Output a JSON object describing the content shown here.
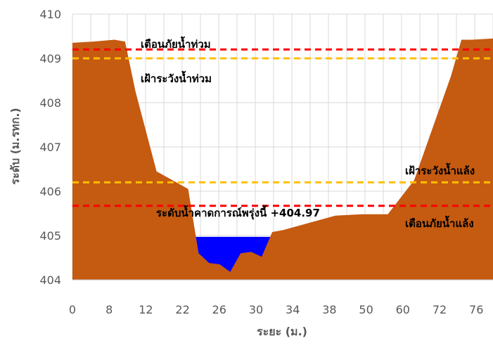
{
  "chart_data": {
    "type": "area",
    "title": "",
    "xlabel": "ระยะ (ม.)",
    "ylabel": "ระดับ (ม.รทก.)",
    "ylim": [
      404,
      410
    ],
    "y_ticks": [
      "404",
      "405",
      "406",
      "407",
      "408",
      "409",
      "410"
    ],
    "x_tick_labels": [
      "0",
      "8",
      "12",
      "22",
      "26",
      "30",
      "34",
      "38",
      "50",
      "60",
      "72",
      "76"
    ],
    "grid": true,
    "ground_profile": {
      "color": "#C55A11",
      "points": [
        {
          "x": 0,
          "y": 409.35
        },
        {
          "x": 4,
          "y": 409.38
        },
        {
          "x": 8,
          "y": 409.42
        },
        {
          "x": 10,
          "y": 409.38
        },
        {
          "x": 12,
          "y": 408.25
        },
        {
          "x": 16,
          "y": 406.45
        },
        {
          "x": 22,
          "y": 406.05
        },
        {
          "x": 24,
          "y": 404.6
        },
        {
          "x": 26,
          "y": 404.38
        },
        {
          "x": 28,
          "y": 404.35
        },
        {
          "x": 30,
          "y": 404.18
        },
        {
          "x": 32,
          "y": 404.6
        },
        {
          "x": 34,
          "y": 404.63
        },
        {
          "x": 36,
          "y": 404.52
        },
        {
          "x": 38,
          "y": 405.08
        },
        {
          "x": 40,
          "y": 405.12
        },
        {
          "x": 50,
          "y": 405.45
        },
        {
          "x": 55,
          "y": 405.48
        },
        {
          "x": 60,
          "y": 405.48
        },
        {
          "x": 65,
          "y": 406.25
        },
        {
          "x": 72,
          "y": 408.6
        },
        {
          "x": 74,
          "y": 409.42
        },
        {
          "x": 76,
          "y": 409.42
        },
        {
          "x": 80,
          "y": 409.45
        }
      ]
    },
    "water_level": {
      "value": 404.97,
      "color": "#0000FF",
      "label": "ระดับน้ำคาดการณ์พรุ่งนี้ +404.97"
    },
    "reference_lines": [
      {
        "name": "flood_warning",
        "label": "เตือนภัยน้ำท่วม",
        "value": 409.2,
        "color": "#FF0000"
      },
      {
        "name": "flood_watch",
        "label": "เฝ้าระวังน้ำท่วม",
        "value": 409.0,
        "color": "#FFC000"
      },
      {
        "name": "drought_watch",
        "label": "เฝ้าระวังน้ำแล้ง",
        "value": 406.2,
        "color": "#FFC000"
      },
      {
        "name": "drought_warning",
        "label": "เตือนภัยน้ำแล้ง",
        "value": 405.67,
        "color": "#FF0000"
      }
    ],
    "colors": {
      "grid": "#D9D9D9",
      "axis_text": "#595959"
    }
  }
}
